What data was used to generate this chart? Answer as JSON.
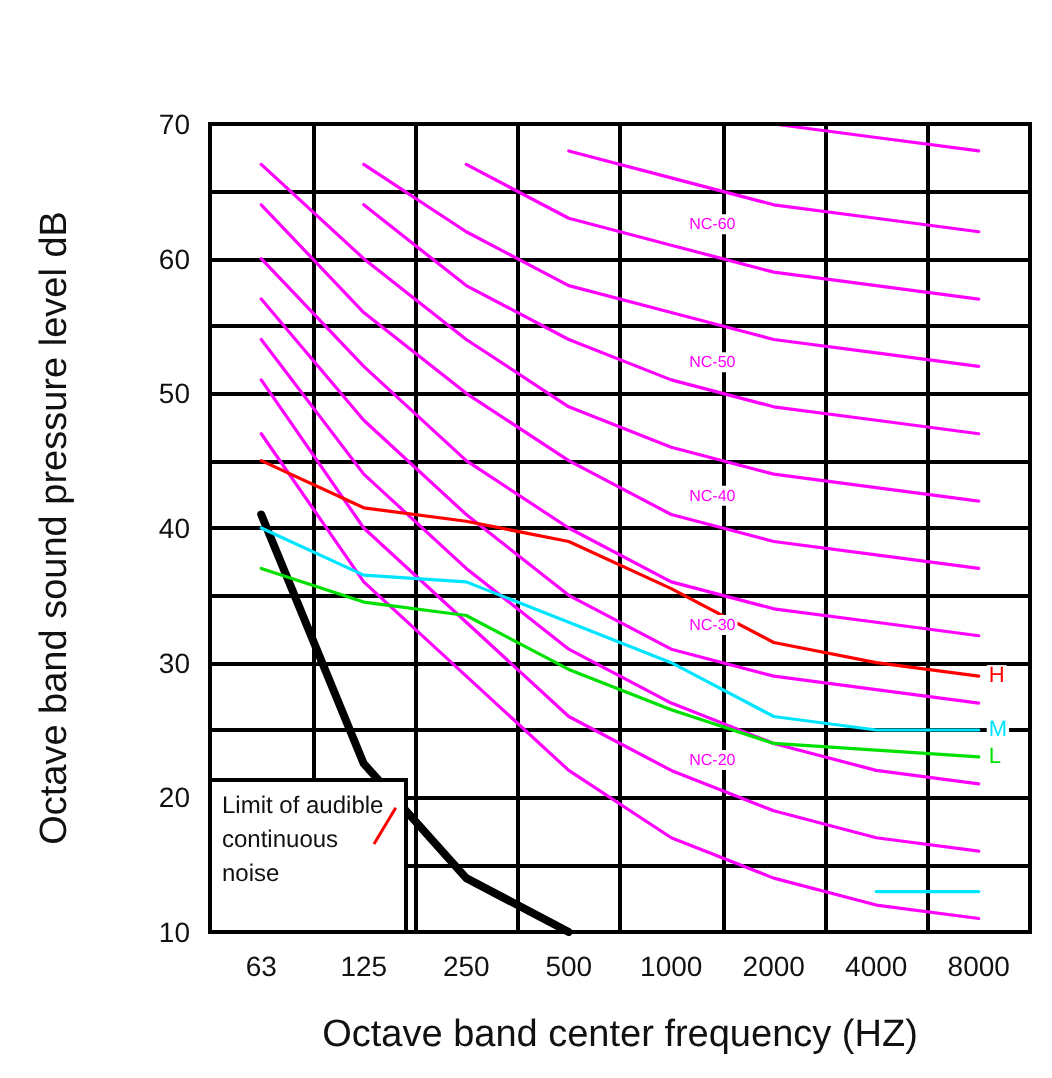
{
  "chart_data": {
    "type": "line",
    "xlabel": "Octave band center frequency (HZ)",
    "ylabel": "Octave band sound pressure level dB",
    "categories": [
      "63",
      "125",
      "250",
      "500",
      "1000",
      "2000",
      "4000",
      "8000"
    ],
    "ylim": [
      10,
      70
    ],
    "yticks": [
      10,
      {
        "value": 15,
        "label": null
      },
      20,
      {
        "value": 25,
        "label": null
      },
      30,
      {
        "value": 35,
        "label": null
      },
      40,
      {
        "value": 45,
        "label": null
      },
      50,
      {
        "value": 55,
        "label": null
      },
      60,
      {
        "value": 65,
        "label": null
      },
      70
    ],
    "grid": true,
    "legend": false,
    "marker": "none",
    "line_style": "solid",
    "series": [
      {
        "color": "#ff00ff",
        "values": [
          47,
          36,
          29,
          22,
          17,
          14,
          12,
          11
        ]
      },
      {
        "color": "#ff00ff",
        "values": [
          51,
          40,
          33,
          26,
          22,
          19,
          17,
          16
        ]
      },
      {
        "color": "#ff00ff",
        "values": [
          54,
          44,
          37,
          31,
          27,
          24,
          22,
          21
        ]
      },
      {
        "color": "#ff00ff",
        "values": [
          57,
          48,
          41,
          35,
          31,
          29,
          28,
          27
        ]
      },
      {
        "color": "#ff00ff",
        "values": [
          60,
          52,
          45,
          40,
          36,
          34,
          33,
          32
        ]
      },
      {
        "color": "#ff00ff",
        "values": [
          64,
          56,
          50,
          45,
          41,
          39,
          38,
          37
        ]
      },
      {
        "color": "#ff00ff",
        "values": [
          67,
          60,
          54,
          49,
          46,
          44,
          43,
          42
        ]
      },
      {
        "color": "#ff00ff",
        "values": [
          null,
          64,
          58,
          54,
          51,
          49,
          48,
          47
        ]
      },
      {
        "color": "#ff00ff",
        "values": [
          null,
          67,
          62,
          58,
          56,
          54,
          53,
          52
        ]
      },
      {
        "color": "#ff00ff",
        "values": [
          null,
          null,
          67,
          63,
          61,
          59,
          58,
          57
        ]
      },
      {
        "color": "#ff00ff",
        "values": [
          null,
          null,
          null,
          68,
          66,
          64,
          63,
          62
        ]
      },
      {
        "color": "#ff00ff",
        "values": [
          null,
          null,
          null,
          null,
          null,
          70,
          69,
          68
        ]
      },
      {
        "color": "#000000",
        "values": [
          41,
          22.5,
          14,
          10,
          null,
          null,
          null,
          null
        ]
      },
      {
        "name": "H",
        "color": "#ff0000",
        "values": [
          45,
          41.5,
          40.5,
          39,
          35.5,
          31.5,
          30,
          29
        ]
      },
      {
        "name": "M",
        "color": "#00e5ff",
        "values": [
          40,
          36.5,
          36,
          33,
          30,
          26,
          25,
          25
        ]
      },
      {
        "name": "L",
        "color": "#00e000",
        "values": [
          37,
          34.5,
          33.5,
          29.5,
          26.5,
          24,
          23.5,
          23
        ]
      },
      {
        "color": "#00e5ff",
        "values": [
          null,
          null,
          null,
          null,
          null,
          null,
          13,
          13
        ]
      }
    ],
    "annotations": [
      "NC-60",
      "NC-50",
      "NC-40",
      "NC-30",
      "NC-20",
      {
        "text": "Limit of audible continuous noise",
        "x": "125",
        "y": 22.5
      }
    ]
  }
}
